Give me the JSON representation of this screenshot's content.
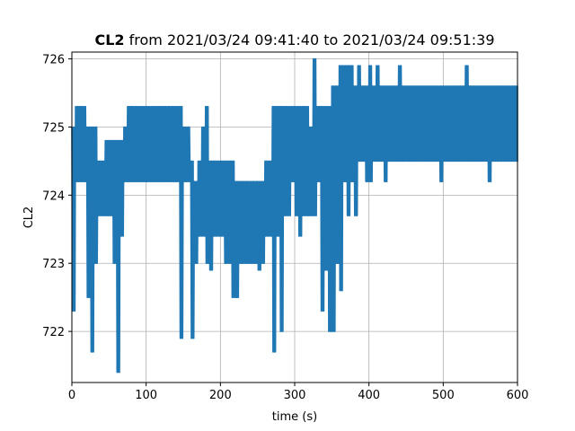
{
  "chart_data": {
    "type": "line",
    "title_bold": "CL2",
    "title_rest": " from 2021/03/24 09:41:40 to 2021/03/24 09:51:39",
    "xlabel": "time (s)",
    "ylabel": "CL2",
    "xlim": [
      0,
      600
    ],
    "ylim": [
      721.25,
      726.1
    ],
    "xticks": [
      0,
      100,
      200,
      300,
      400,
      500,
      600
    ],
    "yticks": [
      722,
      723,
      724,
      725,
      726
    ],
    "grid": true,
    "line_color": "#1f77b4",
    "series": [
      {
        "x": [
          0,
          5,
          10,
          15,
          20,
          25,
          30,
          35,
          40,
          45,
          50,
          55,
          60,
          65,
          70,
          75,
          80,
          85,
          90,
          95,
          100,
          105,
          110,
          115,
          120,
          125,
          130,
          135,
          140,
          145,
          150,
          155,
          160,
          165,
          170,
          175,
          180,
          185,
          190,
          195,
          200,
          205,
          210,
          215,
          220,
          225,
          230,
          235,
          240,
          245,
          250,
          255,
          260,
          265,
          270,
          275,
          280,
          285,
          290,
          295,
          300,
          305,
          310,
          315,
          320,
          325,
          330,
          335,
          340,
          345,
          350,
          355,
          360,
          365,
          370,
          375,
          380,
          385,
          390,
          395,
          400,
          405,
          410,
          415,
          420,
          425,
          430,
          435,
          440,
          445,
          450,
          455,
          460,
          465,
          470,
          475,
          480,
          485,
          490,
          495,
          500,
          505,
          510,
          515,
          520,
          525,
          530,
          535,
          540,
          545,
          550,
          555,
          560,
          565,
          570,
          575,
          580,
          585,
          590,
          595,
          600
        ],
        "low": [
          722.3,
          724.2,
          724.2,
          724.2,
          722.5,
          721.7,
          723.0,
          723.7,
          723.7,
          723.7,
          723.7,
          723.0,
          721.4,
          723.4,
          724.2,
          724.2,
          724.2,
          724.2,
          724.2,
          724.2,
          724.2,
          724.2,
          724.2,
          724.2,
          724.2,
          724.2,
          724.2,
          724.2,
          724.2,
          721.9,
          724.2,
          724.2,
          721.9,
          723.0,
          723.4,
          723.4,
          723.0,
          722.9,
          723.4,
          723.4,
          723.4,
          723.0,
          723.0,
          722.5,
          722.5,
          723.0,
          723.0,
          723.0,
          723.0,
          723.0,
          722.9,
          723.0,
          723.4,
          723.4,
          721.7,
          723.4,
          722.0,
          723.7,
          723.7,
          724.2,
          723.7,
          723.4,
          723.7,
          723.7,
          723.7,
          723.7,
          724.2,
          722.3,
          722.9,
          722.0,
          722.0,
          723.0,
          722.6,
          724.2,
          723.7,
          724.2,
          723.7,
          724.5,
          724.5,
          724.2,
          724.2,
          724.5,
          724.5,
          724.5,
          724.2,
          724.5,
          724.5,
          724.5,
          724.5,
          724.5,
          724.5,
          724.5,
          724.5,
          724.5,
          724.5,
          724.5,
          724.5,
          724.5,
          724.5,
          724.2,
          724.5,
          724.5,
          724.5,
          724.5,
          724.5,
          724.5,
          724.5,
          724.5,
          724.5,
          724.5,
          724.5,
          724.5,
          724.2,
          724.5,
          724.5,
          724.5,
          724.5,
          724.5,
          724.5,
          724.5,
          724.5
        ],
        "high": [
          725.0,
          725.3,
          725.3,
          725.3,
          725.0,
          725.0,
          725.0,
          724.5,
          724.5,
          724.8,
          724.8,
          724.8,
          724.8,
          724.8,
          725.0,
          725.3,
          725.3,
          725.3,
          725.3,
          725.3,
          725.3,
          725.3,
          725.3,
          725.3,
          725.3,
          725.3,
          725.3,
          725.3,
          725.3,
          725.3,
          725.0,
          725.0,
          724.5,
          724.2,
          724.5,
          725.0,
          725.3,
          724.5,
          724.5,
          724.5,
          724.5,
          724.5,
          724.5,
          724.5,
          724.2,
          724.2,
          724.2,
          724.2,
          724.2,
          724.2,
          724.2,
          724.2,
          724.5,
          724.5,
          725.3,
          725.3,
          725.3,
          725.3,
          725.3,
          725.3,
          725.3,
          725.3,
          725.3,
          725.3,
          725.0,
          726.0,
          725.3,
          725.3,
          725.3,
          725.3,
          725.6,
          725.6,
          725.9,
          725.9,
          725.9,
          725.9,
          725.6,
          725.9,
          725.6,
          725.6,
          725.9,
          725.6,
          725.9,
          725.6,
          725.6,
          725.6,
          725.6,
          725.6,
          725.9,
          725.6,
          725.6,
          725.6,
          725.6,
          725.6,
          725.6,
          725.6,
          725.6,
          725.6,
          725.6,
          725.6,
          725.6,
          725.6,
          725.6,
          725.6,
          725.6,
          725.6,
          725.9,
          725.6,
          725.6,
          725.6,
          725.6,
          725.6,
          725.6,
          725.6,
          725.6,
          725.6,
          725.6,
          725.6,
          725.6,
          725.6,
          725.6
        ]
      }
    ]
  }
}
